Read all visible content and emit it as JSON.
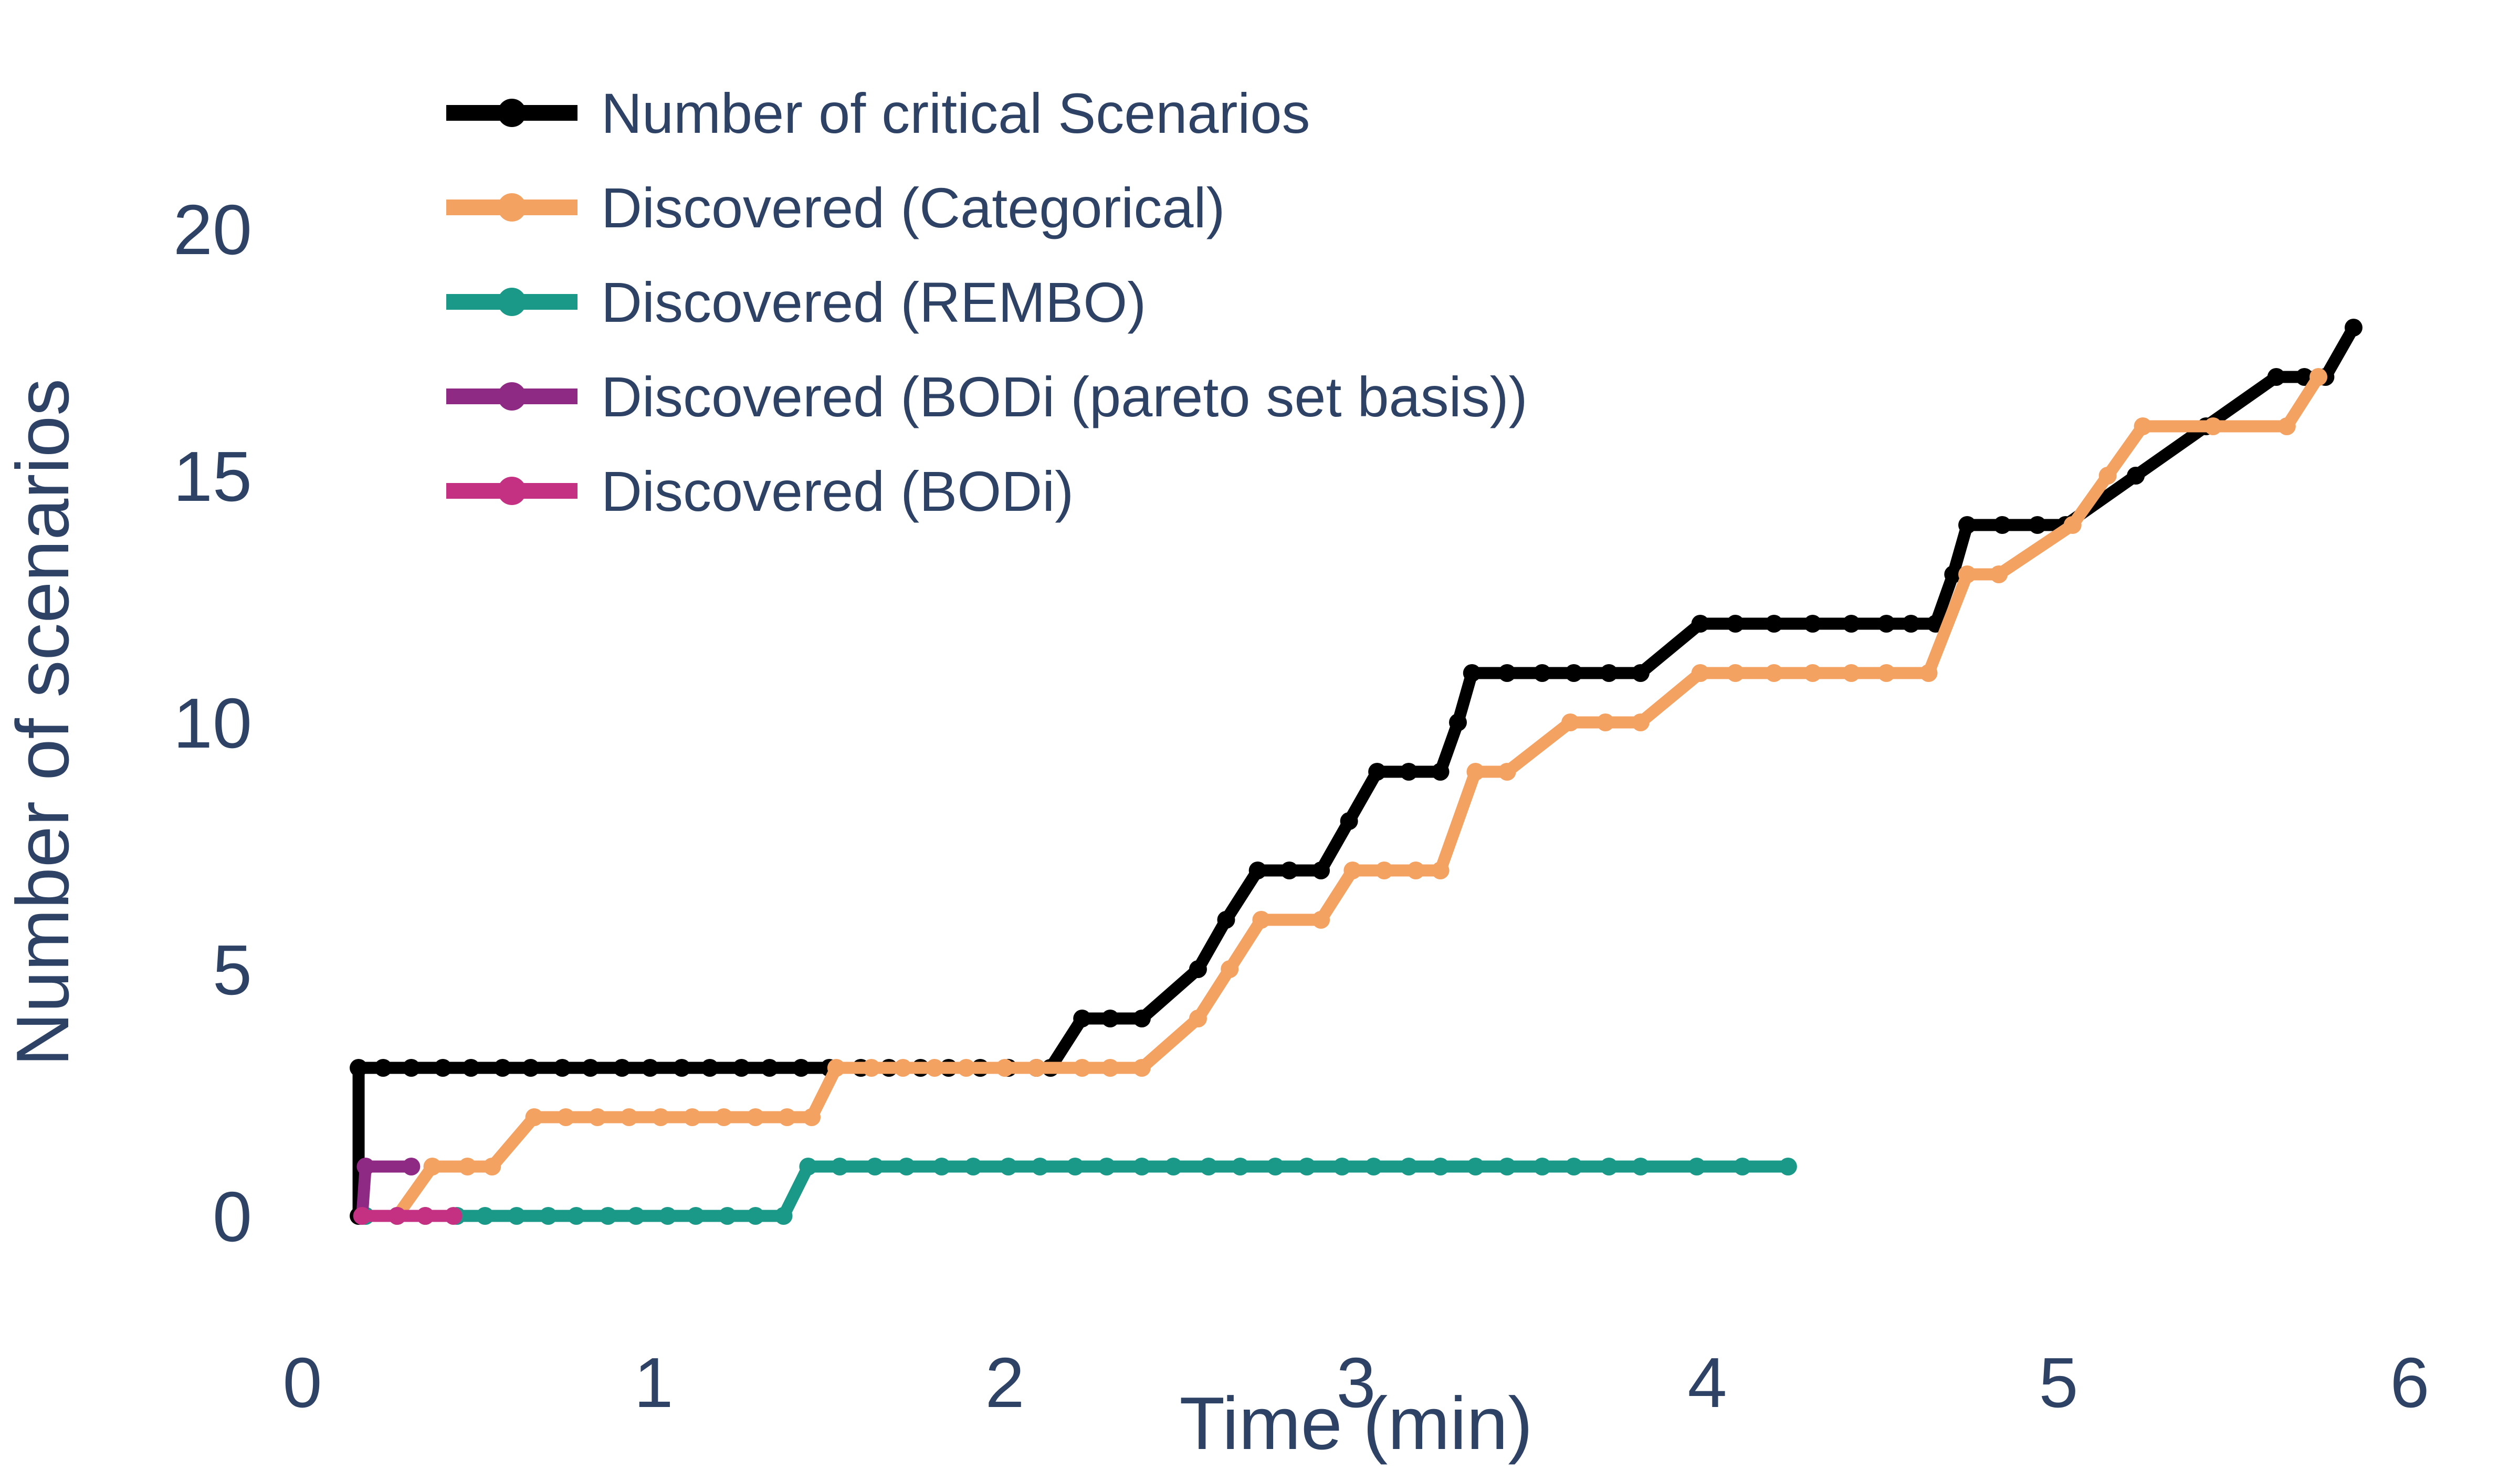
{
  "chart_data": {
    "type": "line",
    "title": "",
    "xlabel": "Time (min)",
    "ylabel": "Number of scenarios",
    "xlim": [
      0,
      6
    ],
    "ylim": [
      0,
      20
    ],
    "x_ticks": [
      0,
      1,
      2,
      3,
      4,
      5,
      6
    ],
    "y_ticks": [
      0,
      5,
      10,
      15,
      20
    ],
    "grid": false,
    "legend_position": "top-left",
    "marker_style": "circle",
    "series": [
      {
        "name": "Number of critical Scenarios",
        "color": "#000000",
        "points": [
          [
            0.16,
            0
          ],
          [
            0.16,
            3
          ],
          [
            0.23,
            3
          ],
          [
            0.31,
            3
          ],
          [
            0.4,
            3
          ],
          [
            0.48,
            3
          ],
          [
            0.57,
            3
          ],
          [
            0.65,
            3
          ],
          [
            0.74,
            3
          ],
          [
            0.82,
            3
          ],
          [
            0.91,
            3
          ],
          [
            0.99,
            3
          ],
          [
            1.08,
            3
          ],
          [
            1.16,
            3
          ],
          [
            1.25,
            3
          ],
          [
            1.33,
            3
          ],
          [
            1.42,
            3
          ],
          [
            1.5,
            3
          ],
          [
            1.59,
            3
          ],
          [
            1.67,
            3
          ],
          [
            1.76,
            3
          ],
          [
            1.84,
            3
          ],
          [
            1.93,
            3
          ],
          [
            2.01,
            3
          ],
          [
            2.09,
            3
          ],
          [
            2.13,
            3
          ],
          [
            2.22,
            4
          ],
          [
            2.3,
            4
          ],
          [
            2.39,
            4
          ],
          [
            2.55,
            5
          ],
          [
            2.63,
            6
          ],
          [
            2.72,
            7
          ],
          [
            2.81,
            7
          ],
          [
            2.9,
            7
          ],
          [
            2.98,
            8
          ],
          [
            3.06,
            9
          ],
          [
            3.15,
            9
          ],
          [
            3.24,
            9
          ],
          [
            3.29,
            10
          ],
          [
            3.33,
            11
          ],
          [
            3.43,
            11
          ],
          [
            3.53,
            11
          ],
          [
            3.62,
            11
          ],
          [
            3.72,
            11
          ],
          [
            3.81,
            11
          ],
          [
            3.98,
            12
          ],
          [
            4.08,
            12
          ],
          [
            4.19,
            12
          ],
          [
            4.3,
            12
          ],
          [
            4.41,
            12
          ],
          [
            4.51,
            12
          ],
          [
            4.58,
            12
          ],
          [
            4.65,
            12
          ],
          [
            4.7,
            13
          ],
          [
            4.74,
            14
          ],
          [
            4.84,
            14
          ],
          [
            4.94,
            14
          ],
          [
            5.02,
            14
          ],
          [
            5.22,
            15
          ],
          [
            5.42,
            16
          ],
          [
            5.62,
            17
          ],
          [
            5.7,
            17
          ],
          [
            5.76,
            17
          ],
          [
            5.84,
            18
          ]
        ]
      },
      {
        "name": "Discovered (Categorical)",
        "color": "#F4A261",
        "points": [
          [
            0.27,
            0
          ],
          [
            0.37,
            1
          ],
          [
            0.47,
            1
          ],
          [
            0.54,
            1
          ],
          [
            0.66,
            2
          ],
          [
            0.75,
            2
          ],
          [
            0.84,
            2
          ],
          [
            0.93,
            2
          ],
          [
            1.02,
            2
          ],
          [
            1.11,
            2
          ],
          [
            1.2,
            2
          ],
          [
            1.29,
            2
          ],
          [
            1.38,
            2
          ],
          [
            1.45,
            2
          ],
          [
            1.52,
            3
          ],
          [
            1.62,
            3
          ],
          [
            1.71,
            3
          ],
          [
            1.8,
            3
          ],
          [
            1.89,
            3
          ],
          [
            2.0,
            3
          ],
          [
            2.09,
            3
          ],
          [
            2.22,
            3
          ],
          [
            2.3,
            3
          ],
          [
            2.39,
            3
          ],
          [
            2.55,
            4
          ],
          [
            2.64,
            5
          ],
          [
            2.73,
            6
          ],
          [
            2.9,
            6
          ],
          [
            2.99,
            7
          ],
          [
            3.08,
            7
          ],
          [
            3.17,
            7
          ],
          [
            3.24,
            7
          ],
          [
            3.34,
            9
          ],
          [
            3.43,
            9
          ],
          [
            3.61,
            10
          ],
          [
            3.71,
            10
          ],
          [
            3.81,
            10
          ],
          [
            3.98,
            11
          ],
          [
            4.08,
            11
          ],
          [
            4.19,
            11
          ],
          [
            4.3,
            11
          ],
          [
            4.41,
            11
          ],
          [
            4.51,
            11
          ],
          [
            4.63,
            11
          ],
          [
            4.74,
            13
          ],
          [
            4.83,
            13
          ],
          [
            5.04,
            14
          ],
          [
            5.14,
            15
          ],
          [
            5.24,
            16
          ],
          [
            5.44,
            16
          ],
          [
            5.65,
            16
          ],
          [
            5.74,
            17
          ]
        ]
      },
      {
        "name": "Discovered (REMBO)",
        "color": "#1A9988",
        "points": [
          [
            0.18,
            0
          ],
          [
            0.27,
            0
          ],
          [
            0.35,
            0
          ],
          [
            0.44,
            0
          ],
          [
            0.52,
            0
          ],
          [
            0.61,
            0
          ],
          [
            0.7,
            0
          ],
          [
            0.78,
            0
          ],
          [
            0.87,
            0
          ],
          [
            0.95,
            0
          ],
          [
            1.04,
            0
          ],
          [
            1.12,
            0
          ],
          [
            1.21,
            0
          ],
          [
            1.29,
            0
          ],
          [
            1.37,
            0
          ],
          [
            1.44,
            1
          ],
          [
            1.53,
            1
          ],
          [
            1.63,
            1
          ],
          [
            1.72,
            1
          ],
          [
            1.82,
            1
          ],
          [
            1.91,
            1
          ],
          [
            2.01,
            1
          ],
          [
            2.1,
            1
          ],
          [
            2.2,
            1
          ],
          [
            2.29,
            1
          ],
          [
            2.39,
            1
          ],
          [
            2.48,
            1
          ],
          [
            2.58,
            1
          ],
          [
            2.67,
            1
          ],
          [
            2.77,
            1
          ],
          [
            2.86,
            1
          ],
          [
            2.96,
            1
          ],
          [
            3.05,
            1
          ],
          [
            3.15,
            1
          ],
          [
            3.24,
            1
          ],
          [
            3.34,
            1
          ],
          [
            3.43,
            1
          ],
          [
            3.53,
            1
          ],
          [
            3.62,
            1
          ],
          [
            3.72,
            1
          ],
          [
            3.81,
            1
          ],
          [
            3.97,
            1
          ],
          [
            4.1,
            1
          ],
          [
            4.23,
            1
          ]
        ]
      },
      {
        "name": "Discovered (BODi (pareto set basis))",
        "color": "#8F2A84",
        "points": [
          [
            0.17,
            0
          ],
          [
            0.18,
            1
          ],
          [
            0.31,
            1
          ]
        ]
      },
      {
        "name": "Discovered (BODi)",
        "color": "#C43183",
        "points": [
          [
            0.17,
            0
          ],
          [
            0.27,
            0
          ],
          [
            0.35,
            0
          ],
          [
            0.43,
            0
          ]
        ]
      }
    ]
  },
  "colors": {
    "text": "#2D4265",
    "background": "#FFFFFF"
  }
}
